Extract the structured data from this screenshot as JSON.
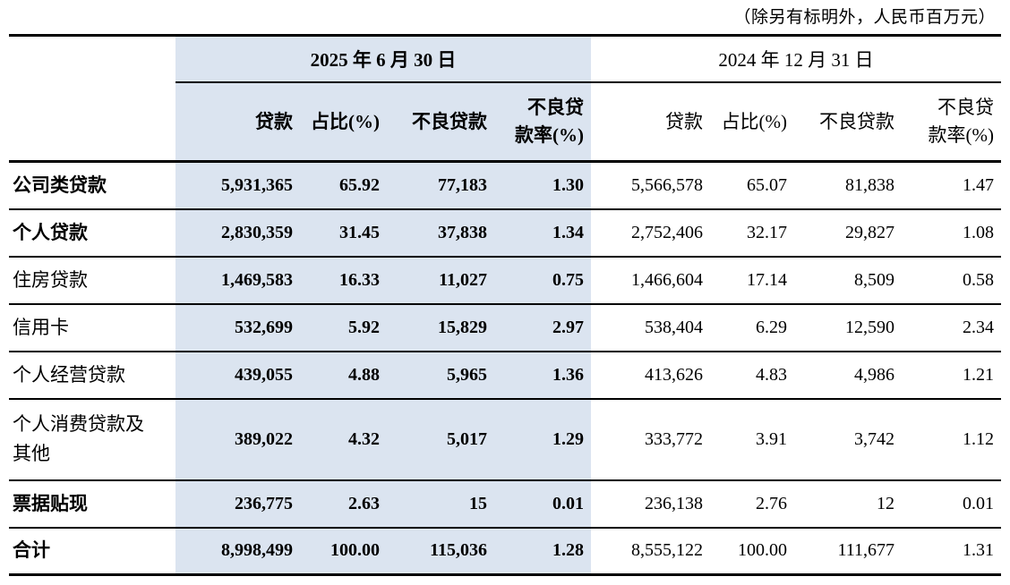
{
  "note": "（除另有标明外，人民币百万元）",
  "colors": {
    "highlight_band": "#dbe4f0"
  },
  "table": {
    "period_headers": {
      "h2025": "2025 年 6 月 30 日",
      "h2024": "2024 年 12 月 31 日"
    },
    "column_headers": {
      "loans": "贷款",
      "share": "占比(%)",
      "npl": "不良贷款",
      "npl_ratio": "不良贷\n款率(%)"
    },
    "rows": [
      {
        "label": "公司类贷款",
        "emphasis": true,
        "v2025": [
          "5,931,365",
          "65.92",
          "77,183",
          "1.30"
        ],
        "v2024": [
          "5,566,578",
          "65.07",
          "81,838",
          "1.47"
        ]
      },
      {
        "label": "个人贷款",
        "emphasis": true,
        "v2025": [
          "2,830,359",
          "31.45",
          "37,838",
          "1.34"
        ],
        "v2024": [
          "2,752,406",
          "32.17",
          "29,827",
          "1.08"
        ]
      },
      {
        "label": "住房贷款",
        "emphasis": false,
        "v2025": [
          "1,469,583",
          "16.33",
          "11,027",
          "0.75"
        ],
        "v2024": [
          "1,466,604",
          "17.14",
          "8,509",
          "0.58"
        ]
      },
      {
        "label": "信用卡",
        "emphasis": false,
        "v2025": [
          "532,699",
          "5.92",
          "15,829",
          "2.97"
        ],
        "v2024": [
          "538,404",
          "6.29",
          "12,590",
          "2.34"
        ]
      },
      {
        "label": "个人经营贷款",
        "emphasis": false,
        "v2025": [
          "439,055",
          "4.88",
          "5,965",
          "1.36"
        ],
        "v2024": [
          "413,626",
          "4.83",
          "4,986",
          "1.21"
        ]
      },
      {
        "label": "个人消费贷款及其他",
        "emphasis": false,
        "v2025": [
          "389,022",
          "4.32",
          "5,017",
          "1.29"
        ],
        "v2024": [
          "333,772",
          "3.91",
          "3,742",
          "1.12"
        ]
      },
      {
        "label": "票据贴现",
        "emphasis": true,
        "v2025": [
          "236,775",
          "2.63",
          "15",
          "0.01"
        ],
        "v2024": [
          "236,138",
          "2.76",
          "12",
          "0.01"
        ]
      },
      {
        "label": "合计",
        "emphasis": true,
        "v2025": [
          "8,998,499",
          "100.00",
          "115,036",
          "1.28"
        ],
        "v2024": [
          "8,555,122",
          "100.00",
          "111,677",
          "1.31"
        ]
      }
    ]
  }
}
